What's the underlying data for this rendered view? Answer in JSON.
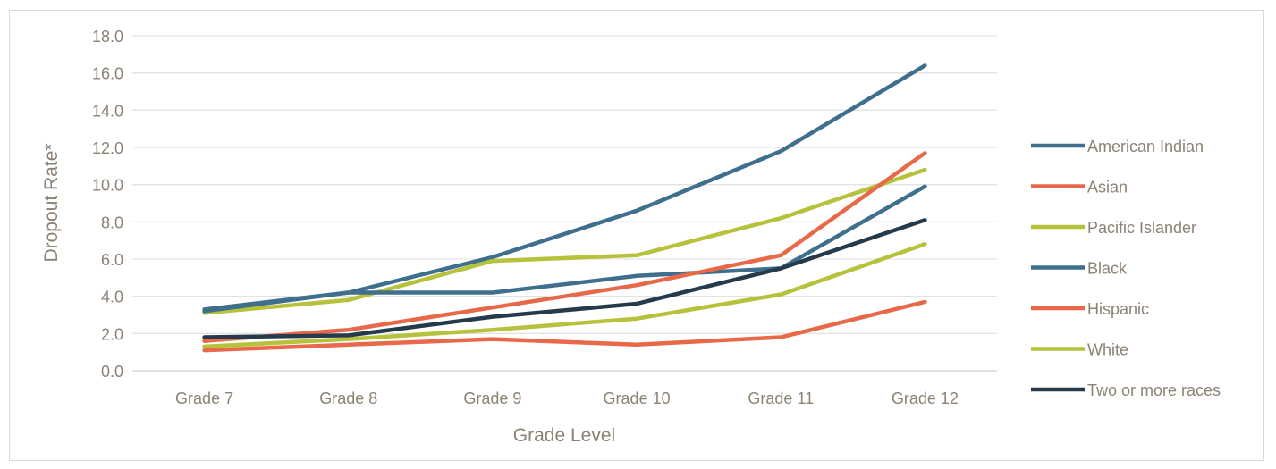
{
  "chart_data": {
    "type": "line",
    "title": "",
    "xlabel": "Grade Level",
    "ylabel": "Dropout Rate*",
    "categories": [
      "Grade 7",
      "Grade 8",
      "Grade 9",
      "Grade 10",
      "Grade 11",
      "Grade 12"
    ],
    "ylim": [
      0,
      18
    ],
    "yticks": [
      "0.0",
      "2.0",
      "4.0",
      "6.0",
      "8.0",
      "10.0",
      "12.0",
      "14.0",
      "16.0",
      "18.0"
    ],
    "grid": true,
    "legend_position": "right",
    "series": [
      {
        "name": "American Indian",
        "color": "#3f6f8c",
        "values": [
          3.3,
          4.2,
          6.1,
          8.6,
          11.8,
          16.4
        ]
      },
      {
        "name": "Asian",
        "color": "#e8694a",
        "values": [
          1.1,
          1.4,
          1.7,
          1.4,
          1.8,
          3.7
        ]
      },
      {
        "name": "Pacific Islander",
        "color": "#b7c23c",
        "values": [
          3.1,
          3.8,
          5.9,
          6.2,
          8.2,
          10.8
        ]
      },
      {
        "name": "Black",
        "color": "#3f6f8c",
        "values": [
          3.2,
          4.2,
          4.2,
          5.1,
          5.5,
          9.9
        ]
      },
      {
        "name": "Hispanic",
        "color": "#e8694a",
        "values": [
          1.6,
          2.2,
          3.4,
          4.6,
          6.2,
          11.7
        ]
      },
      {
        "name": "White",
        "color": "#b7c23c",
        "values": [
          1.3,
          1.7,
          2.2,
          2.8,
          4.1,
          6.8
        ]
      },
      {
        "name": "Two or more races",
        "color": "#253a4a",
        "values": [
          1.8,
          1.9,
          2.9,
          3.6,
          5.5,
          8.1
        ]
      }
    ]
  }
}
